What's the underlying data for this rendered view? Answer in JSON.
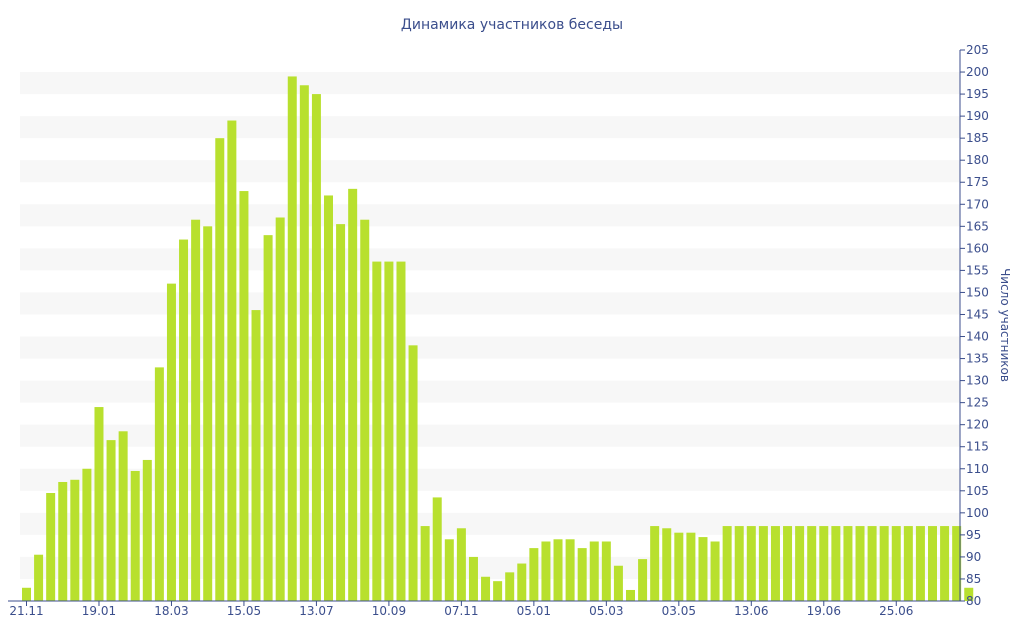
{
  "chart_data": {
    "type": "bar",
    "title": "Динамика участников беседы",
    "xlabel": "",
    "ylabel": "Число участников",
    "ylim": [
      80,
      205
    ],
    "y_axis_position": "right",
    "y_tick_step": 5,
    "grid": true,
    "grid_style": "alternating horizontal bands",
    "bar_color": "#b8e02e",
    "band_color": "#f7f7f7",
    "text_color": "#3b4e8c",
    "axis_color": "#3b4e8c",
    "x_tick_labels": [
      {
        "index": 0,
        "label": "21.11"
      },
      {
        "index": 6,
        "label": "19.01"
      },
      {
        "index": 12,
        "label": "18.03"
      },
      {
        "index": 18,
        "label": "15.05"
      },
      {
        "index": 24,
        "label": "13.07"
      },
      {
        "index": 30,
        "label": "10.09"
      },
      {
        "index": 36,
        "label": "07.11"
      },
      {
        "index": 42,
        "label": "05.01"
      },
      {
        "index": 48,
        "label": "05.03"
      },
      {
        "index": 54,
        "label": "03.05"
      },
      {
        "index": 60,
        "label": "13.06"
      },
      {
        "index": 66,
        "label": "19.06"
      },
      {
        "index": 72,
        "label": "25.06"
      }
    ],
    "values": [
      83,
      90.5,
      104.5,
      107,
      107.5,
      110,
      124,
      116.5,
      118.5,
      109.5,
      112,
      133,
      152,
      162,
      166.5,
      165,
      185,
      189,
      173,
      146,
      163,
      167,
      199,
      197,
      195,
      172,
      165.5,
      173.5,
      166.5,
      157,
      157,
      157,
      138,
      97,
      103.5,
      94,
      96.5,
      90,
      85.5,
      84.5,
      86.5,
      88.5,
      92,
      93.5,
      94,
      94,
      92,
      93.5,
      93.5,
      88,
      82.5,
      89.5,
      97,
      96.5,
      95.5,
      95.5,
      94.5,
      93.5,
      97,
      97,
      97,
      97,
      97,
      97,
      97,
      97,
      97,
      97,
      97,
      97,
      97,
      97,
      97,
      97,
      97,
      97,
      97,
      97,
      83
    ]
  }
}
